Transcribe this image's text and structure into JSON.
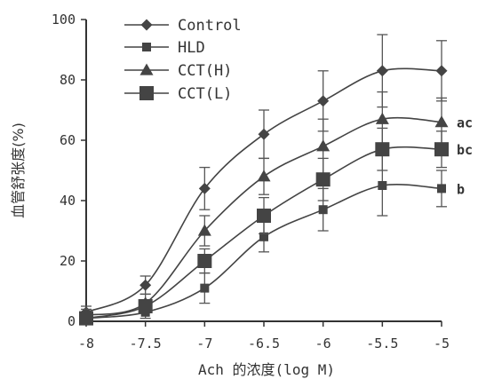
{
  "chart_data": {
    "type": "line",
    "title": "",
    "xlabel": "Ach 的浓度(log M)",
    "ylabel": "血管舒张度(%)",
    "x": [
      -8,
      -7.5,
      -7,
      -6.5,
      -6,
      -5.5,
      -5
    ],
    "x_tick_labels": [
      "-8",
      "-7.5",
      "-7",
      "-6.5",
      "-6",
      "-5.5",
      "-5"
    ],
    "xlim": [
      -8,
      -5
    ],
    "ylim": [
      0,
      100
    ],
    "y_ticks": [
      0,
      20,
      40,
      60,
      80,
      100
    ],
    "y_tick_labels": [
      "0",
      "20",
      "40",
      "60",
      "80",
      "100"
    ],
    "grid": false,
    "legend_position": "top-left",
    "series": [
      {
        "name": "Control",
        "marker": "diamond",
        "color": "#444444",
        "values": [
          3,
          12,
          44,
          62,
          73,
          83,
          83
        ],
        "errors": [
          2,
          3,
          7,
          8,
          10,
          12,
          10
        ],
        "end_label": ""
      },
      {
        "name": "HLD",
        "marker": "small-square",
        "color": "#444444",
        "values": [
          1,
          3,
          11,
          28,
          37,
          45,
          44
        ],
        "errors": [
          1,
          2,
          5,
          5,
          7,
          10,
          6
        ],
        "end_label": "b"
      },
      {
        "name": "CCT(H)",
        "marker": "triangle",
        "color": "#444444",
        "values": [
          2,
          6,
          30,
          48,
          58,
          67,
          66
        ],
        "errors": [
          2,
          3,
          5,
          6,
          9,
          9,
          8
        ],
        "end_label": "ac"
      },
      {
        "name": "CCT(L)",
        "marker": "square",
        "color": "#444444",
        "values": [
          1,
          5,
          20,
          35,
          47,
          57,
          57
        ],
        "errors": [
          1,
          2,
          4,
          6,
          7,
          7,
          6
        ],
        "end_label": "bc"
      }
    ]
  }
}
